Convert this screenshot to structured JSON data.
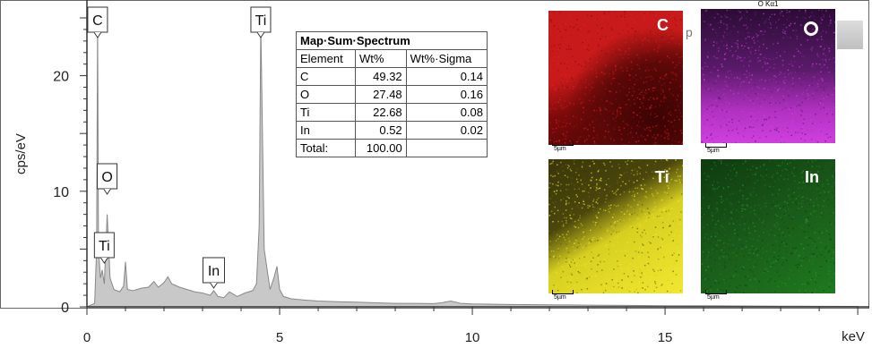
{
  "chart_data": {
    "type": "area",
    "xlabel": "keV",
    "ylabel": "cps/eV",
    "xlim": [
      0,
      20
    ],
    "ylim": [
      0,
      25
    ],
    "x_ticks": [
      "0",
      "5",
      "10",
      "15"
    ],
    "y_ticks": [
      "0",
      "10",
      "20"
    ],
    "grid": false,
    "series": [
      {
        "x": [
          0,
          0.2,
          0.25,
          0.277,
          0.3,
          0.35,
          0.395,
          0.45,
          0.525,
          0.6,
          0.7,
          0.85,
          0.95,
          1.0,
          1.05,
          1.2,
          1.4,
          1.6,
          1.74,
          1.85,
          2.0,
          2.1,
          2.2,
          2.4,
          2.6,
          2.8,
          3.0,
          3.2,
          3.29,
          3.4,
          3.55,
          3.7,
          3.9,
          4.1,
          4.3,
          4.4,
          4.47,
          4.51,
          4.6,
          4.75,
          4.85,
          4.93,
          5.0,
          5.1,
          5.3,
          5.6,
          6.0,
          6.5,
          7.0,
          7.5,
          8.0,
          8.5,
          9.0,
          9.2,
          9.44,
          9.7,
          10.0,
          11.0,
          12.0,
          13.0,
          14.0,
          15.0,
          16.0,
          17.0,
          18.0,
          19.0,
          20.0
        ],
        "y": [
          0,
          0.3,
          5.0,
          25.0,
          5.0,
          2.5,
          3.2,
          2.0,
          8.0,
          2.5,
          1.5,
          1.3,
          1.8,
          3.9,
          1.5,
          1.4,
          1.6,
          1.7,
          2.2,
          1.7,
          2.1,
          2.6,
          2.0,
          1.7,
          1.5,
          1.3,
          1.2,
          1.0,
          1.4,
          0.9,
          0.8,
          1.3,
          0.9,
          1.2,
          1.4,
          2.0,
          7.0,
          24.5,
          5.0,
          1.5,
          2.5,
          3.5,
          1.5,
          0.9,
          0.7,
          0.6,
          0.5,
          0.45,
          0.4,
          0.35,
          0.3,
          0.3,
          0.28,
          0.35,
          0.5,
          0.3,
          0.25,
          0.2,
          0.18,
          0.15,
          0.12,
          0.1,
          0.1,
          0.08,
          0.06,
          0.05,
          0.04
        ]
      }
    ],
    "annotations": [
      {
        "text": "C",
        "x": 0.277
      },
      {
        "text": "O",
        "x": 0.525
      },
      {
        "text": "Ti",
        "x": 0.45
      },
      {
        "text": "In",
        "x": 3.29
      },
      {
        "text": "Ti",
        "x": 4.51
      }
    ],
    "fill_color": "#c8c8c8",
    "line_color": "#888888"
  },
  "table": {
    "title": "Map·Sum·Spectrum",
    "headers": [
      "Element",
      "Wt%",
      "Wt%·Sigma"
    ],
    "rows": [
      [
        "C",
        "49.32",
        "0.14"
      ],
      [
        "O",
        "27.48",
        "0.16"
      ],
      [
        "Ti",
        "22.68",
        "0.08"
      ],
      [
        "In",
        "0.52",
        "0.02"
      ],
      [
        "Total:",
        "100.00",
        ""
      ]
    ]
  },
  "maps": [
    {
      "element": "C",
      "color": "#c81a1a"
    },
    {
      "element": "O",
      "color": "#b030c0",
      "header": "O Kα1"
    },
    {
      "element": "Ti",
      "color": "#d8d020"
    },
    {
      "element": "In",
      "color": "#1e7a1e"
    }
  ],
  "scale_bar_label": "5µm",
  "partial_text": "p"
}
